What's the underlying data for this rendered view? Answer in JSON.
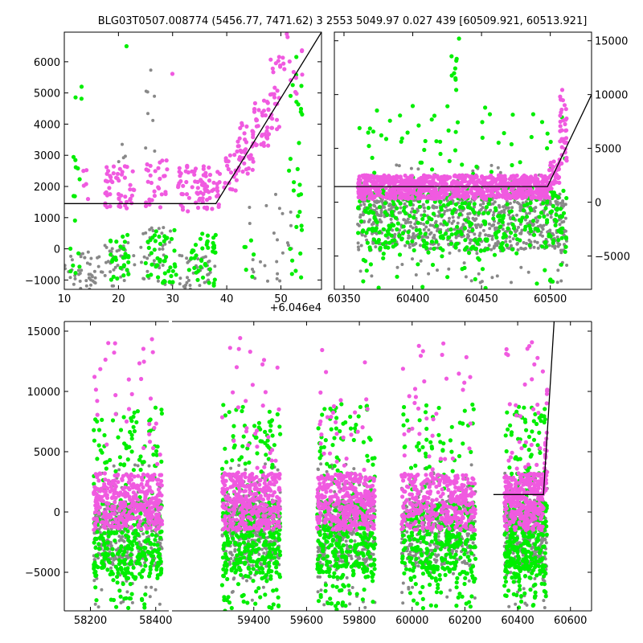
{
  "figure_title": "BLG03T0507.008774 (5456.77, 7471.62)    3 2553 5049.97 0.027 439 [60509.921, 60513.921]",
  "colors": {
    "magenta": "#f05ae0",
    "green": "#00ee00",
    "gray": "#888888",
    "model": "#000000"
  },
  "chart_data": [
    {
      "name": "zoom-event",
      "type": "scatter",
      "title": "",
      "xlabel": "",
      "ylabel": "",
      "x_offset_label": "+6.046e4",
      "xlim": [
        10,
        57.5
      ],
      "ylim": [
        -1300,
        6950
      ],
      "xticks": [
        {
          "v": 10,
          "t": "10"
        },
        {
          "v": 20,
          "t": "20"
        },
        {
          "v": 30,
          "t": "30"
        },
        {
          "v": 40,
          "t": "40"
        },
        {
          "v": 50,
          "t": "50"
        }
      ],
      "yticks": [
        {
          "v": -1000,
          "t": "−1000"
        },
        {
          "v": 0,
          "t": "0"
        },
        {
          "v": 1000,
          "t": "1000"
        },
        {
          "v": 2000,
          "t": "2000"
        },
        {
          "v": 3000,
          "t": "3000"
        },
        {
          "v": 4000,
          "t": "4000"
        },
        {
          "v": 5000,
          "t": "5000"
        },
        {
          "v": 6000,
          "t": "6000"
        }
      ],
      "ytick_side": "left",
      "model_line": [
        [
          10,
          1450
        ],
        [
          38,
          1450
        ],
        [
          57.5,
          6950
        ]
      ],
      "series": [
        {
          "color": "gray",
          "clusters": [
            {
              "x": [
                10,
                17
              ],
              "y": [
                -1300,
                -100
              ],
              "n": 45
            },
            {
              "x": [
                17,
                23
              ],
              "y": [
                -1200,
                200
              ],
              "n": 35
            },
            {
              "x": [
                24,
                30
              ],
              "y": [
                -1200,
                700
              ],
              "n": 40
            },
            {
              "x": [
                31,
                38
              ],
              "y": [
                -1300,
                -200
              ],
              "n": 40
            },
            {
              "x": [
                44,
                52
              ],
              "y": [
                -1200,
                1800
              ],
              "n": 25
            },
            {
              "x": [
                25,
                27
              ],
              "y": [
                2800,
                6000
              ],
              "n": 8
            },
            {
              "x": [
                20,
                23
              ],
              "y": [
                2500,
                3600
              ],
              "n": 4
            }
          ]
        },
        {
          "color": "green",
          "clusters": [
            {
              "x": [
                11,
                13
              ],
              "y": [
                -900,
                3100
              ],
              "n": 14
            },
            {
              "x": [
                18,
                22
              ],
              "y": [
                -1000,
                500
              ],
              "n": 30
            },
            {
              "x": [
                25,
                31
              ],
              "y": [
                -1100,
                600
              ],
              "n": 45
            },
            {
              "x": [
                33,
                38
              ],
              "y": [
                -1200,
                500
              ],
              "n": 40
            },
            {
              "x": [
                51.5,
                54
              ],
              "y": [
                -1000,
                6400
              ],
              "n": 30
            },
            {
              "x": [
                12,
                15
              ],
              "y": [
                4700,
                5400
              ],
              "n": 3
            },
            {
              "x": [
                21,
                22
              ],
              "y": [
                6500,
                6500
              ],
              "n": 1
            },
            {
              "x": [
                42,
                47
              ],
              "y": [
                -1300,
                1000
              ],
              "n": 6
            }
          ]
        },
        {
          "color": "magenta",
          "clusters": [
            {
              "x": [
                13.5,
                14.5
              ],
              "y": [
                1400,
                2600
              ],
              "n": 5
            },
            {
              "x": [
                17.5,
                23
              ],
              "y": [
                1300,
                2800
              ],
              "n": 50
            },
            {
              "x": [
                25,
                29
              ],
              "y": [
                1300,
                2900
              ],
              "n": 30
            },
            {
              "x": [
                31,
                39
              ],
              "y": [
                1200,
                2700
              ],
              "n": 80
            },
            {
              "x": [
                39,
                42
              ],
              "y": [
                1800,
                3200
              ],
              "n": 20
            },
            {
              "x": [
                42,
                45
              ],
              "y": [
                2400,
                4100
              ],
              "n": 40
            },
            {
              "x": [
                45,
                48
              ],
              "y": [
                3300,
                4800
              ],
              "n": 35
            },
            {
              "x": [
                48,
                50
              ],
              "y": [
                3800,
                6200
              ],
              "n": 25
            },
            {
              "x": [
                50,
                54
              ],
              "y": [
                4800,
                6900
              ],
              "n": 15
            },
            {
              "x": [
                29.8,
                30.2
              ],
              "y": [
                5600,
                5700
              ],
              "n": 1
            }
          ]
        }
      ]
    },
    {
      "name": "recent-season",
      "type": "scatter",
      "title": "",
      "xlabel": "",
      "ylabel": "",
      "xlim": [
        60343,
        60530
      ],
      "ylim": [
        -8100,
        15800
      ],
      "xticks": [
        {
          "v": 60350,
          "t": "60350"
        },
        {
          "v": 60400,
          "t": "60400"
        },
        {
          "v": 60450,
          "t": "60450"
        },
        {
          "v": 60500,
          "t": "60500"
        }
      ],
      "yticks": [
        {
          "v": -5000,
          "t": "−5000"
        },
        {
          "v": 0,
          "t": "0"
        },
        {
          "v": 5000,
          "t": "5000"
        },
        {
          "v": 10000,
          "t": "10000"
        },
        {
          "v": 15000,
          "t": "15000"
        }
      ],
      "ytick_side": "right",
      "model_line": [
        [
          60343,
          1450
        ],
        [
          60498,
          1450
        ],
        [
          60530,
          10000
        ]
      ],
      "series": [
        {
          "color": "gray",
          "clusters": [
            {
              "x": [
                60360,
                60512
              ],
              "y": [
                -4500,
                800
              ],
              "n": 700
            },
            {
              "x": [
                60360,
                60512
              ],
              "y": [
                -7500,
                3500
              ],
              "n": 120
            }
          ]
        },
        {
          "color": "green",
          "clusters": [
            {
              "x": [
                60360,
                60512
              ],
              "y": [
                -4500,
                1500
              ],
              "n": 350
            },
            {
              "x": [
                60360,
                60512
              ],
              "y": [
                -8000,
                9000
              ],
              "n": 140
            },
            {
              "x": [
                60425,
                60435
              ],
              "y": [
                4000,
                15800
              ],
              "n": 15
            }
          ]
        },
        {
          "color": "magenta",
          "clusters": [
            {
              "x": [
                60360,
                60500
              ],
              "y": [
                300,
                2500
              ],
              "n": 900
            },
            {
              "x": [
                60498,
                60507
              ],
              "y": [
                1200,
                4000
              ],
              "n": 40
            },
            {
              "x": [
                60507,
                60512
              ],
              "y": [
                3500,
                10500
              ],
              "n": 35
            }
          ]
        }
      ]
    },
    {
      "name": "full-light-curve",
      "type": "scatter",
      "title": "",
      "xlabel": "",
      "ylabel": "",
      "xlim": [
        58120,
        58440
      ],
      "xlim_right": [
        59090,
        60680
      ],
      "ylim": [
        -8200,
        15800
      ],
      "xticks_left": [
        {
          "v": 58200,
          "t": "58200"
        },
        {
          "v": 58400,
          "t": "58400"
        }
      ],
      "xticks_right": [
        {
          "v": 59400,
          "t": "59400"
        },
        {
          "v": 59600,
          "t": "59600"
        },
        {
          "v": 59800,
          "t": "59800"
        },
        {
          "v": 60000,
          "t": "60000"
        },
        {
          "v": 60200,
          "t": "60200"
        },
        {
          "v": 60400,
          "t": "60400"
        },
        {
          "v": 60600,
          "t": "60600"
        }
      ],
      "yticks": [
        {
          "v": -5000,
          "t": "−5000"
        },
        {
          "v": 0,
          "t": "0"
        },
        {
          "v": 5000,
          "t": "5000"
        },
        {
          "v": 10000,
          "t": "10000"
        },
        {
          "v": 15000,
          "t": "15000"
        }
      ],
      "ytick_side": "left",
      "model_line": [
        [
          60308,
          1450
        ],
        [
          60498,
          1450
        ],
        [
          60538,
          15800
        ]
      ],
      "seasons": [
        {
          "x": [
            58210,
            58420
          ]
        },
        {
          "x": [
            59280,
            59500
          ]
        },
        {
          "x": [
            59640,
            59860
          ]
        },
        {
          "x": [
            59960,
            60240
          ]
        },
        {
          "x": [
            60350,
            60512
          ]
        }
      ],
      "series": [
        {
          "color": "gray",
          "scale": [
            [
              -4500,
              1000,
              0.8
            ],
            [
              -8000,
              4000,
              0.2
            ]
          ]
        },
        {
          "color": "green",
          "scale": [
            [
              -5500,
              800,
              0.55
            ],
            [
              -8200,
              9000,
              0.45
            ]
          ]
        },
        {
          "color": "magenta",
          "scale": [
            [
              -1500,
              3200,
              0.92
            ],
            [
              3000,
              14500,
              0.08
            ]
          ]
        }
      ],
      "points_per_season": 380
    }
  ]
}
